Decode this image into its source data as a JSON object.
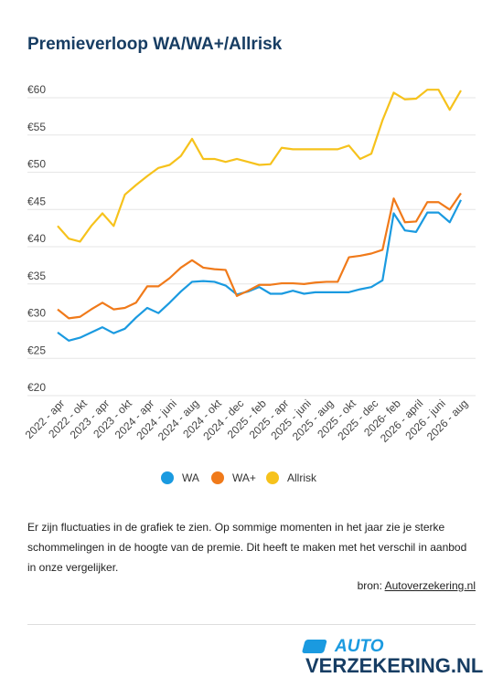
{
  "chart_data": {
    "type": "line",
    "title": "Premieverloop WA/WA+/Allrisk",
    "categories": [
      "2022 - apr",
      null,
      "2022 - okt",
      null,
      "2023 - apr",
      null,
      "2023 - okt",
      null,
      "2024 - apr",
      null,
      "2024 - juni",
      null,
      "2024 - aug",
      null,
      "2024 - okt",
      null,
      "2024 - dec",
      null,
      "2025 - feb",
      null,
      "2025 - apr",
      null,
      "2025 - juni",
      null,
      "2025 - aug",
      null,
      "2025 - okt",
      null,
      "2025 - dec",
      null,
      "2026- feb",
      null,
      "2026 - april",
      null,
      "2026 - juni",
      null,
      "2026 - aug"
    ],
    "series": [
      {
        "name": "WA",
        "color": "#1a9ae0",
        "values": [
          27.5,
          26.4,
          26.8,
          27.5,
          28.2,
          27.4,
          28.0,
          29.5,
          30.8,
          30.1,
          31.5,
          33.0,
          34.3,
          34.4,
          34.3,
          33.8,
          32.6,
          33.0,
          33.6,
          32.7,
          32.7,
          33.1,
          32.7,
          32.9,
          32.9,
          32.9,
          32.9,
          33.3,
          33.6,
          34.5,
          43.5,
          41.2,
          41.0,
          43.6,
          43.6,
          42.3,
          45.3
        ]
      },
      {
        "name": "WA+",
        "color": "#f07a1a",
        "values": [
          30.6,
          29.4,
          29.6,
          30.6,
          31.5,
          30.6,
          30.8,
          31.5,
          33.7,
          33.7,
          34.8,
          36.2,
          37.2,
          36.2,
          36.0,
          35.9,
          32.4,
          33.1,
          33.9,
          33.9,
          34.1,
          34.1,
          34.0,
          34.2,
          34.3,
          34.3,
          37.6,
          37.8,
          38.1,
          38.6,
          45.5,
          42.3,
          42.4,
          45.0,
          45.0,
          44.0,
          46.2
        ]
      },
      {
        "name": "Allrisk",
        "color": "#f6c21c",
        "values": [
          41.8,
          40.1,
          39.7,
          41.8,
          43.5,
          41.8,
          46.0,
          47.3,
          48.5,
          49.6,
          50.0,
          51.2,
          53.5,
          50.8,
          50.8,
          50.4,
          50.8,
          50.4,
          50.0,
          50.1,
          52.3,
          52.1,
          52.1,
          52.1,
          52.1,
          52.1,
          52.6,
          50.8,
          51.5,
          56.0,
          59.7,
          58.8,
          58.9,
          60.1,
          60.1,
          57.4,
          60.0
        ]
      }
    ],
    "ylim": [
      20,
      60
    ],
    "yticks": [
      {
        "value": 20,
        "label": "€20"
      },
      {
        "value": 25,
        "label": "€25"
      },
      {
        "value": 30,
        "label": "€30"
      },
      {
        "value": 35,
        "label": "€35"
      },
      {
        "value": 40,
        "label": "€40"
      },
      {
        "value": 45,
        "label": "€45"
      },
      {
        "value": 50,
        "label": "€50"
      },
      {
        "value": 55,
        "label": "€55"
      },
      {
        "value": 60,
        "label": "€60"
      }
    ],
    "grid": true
  },
  "text": {
    "description": "Er zijn fluctuaties in de grafiek te zien. Op sommige momenten in het jaar zie je sterke schommelingen in de hoogte van de premie. Dit heeft te maken met het verschil in aanbod in onze vergelijker.",
    "source_label": "bron:",
    "source_link": "Autoverzekering.nl"
  },
  "logo": {
    "line1": "AUTO",
    "line2": "VERZEKERING.NL"
  }
}
